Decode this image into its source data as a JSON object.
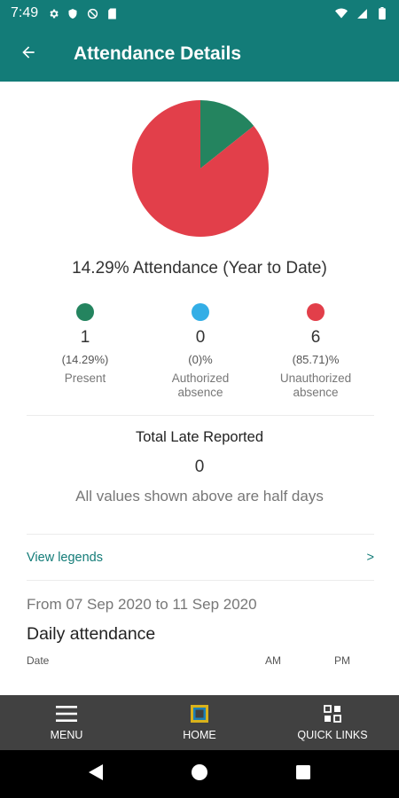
{
  "status_bar": {
    "time": "7:49",
    "left_icons": [
      "gear-icon",
      "shield-icon",
      "data-saver-icon",
      "sim-card-icon"
    ],
    "right_icons": [
      "wifi-icon",
      "signal-icon",
      "battery-icon"
    ]
  },
  "header": {
    "title": "Attendance Details",
    "back_icon": "arrow-left-icon"
  },
  "chart_data": {
    "type": "pie",
    "slices": [
      {
        "label": "Present",
        "value": 1,
        "percent": 14.29,
        "color": "#24845f"
      },
      {
        "label": "Authorized absence",
        "value": 0,
        "percent": 0,
        "color": "#33aee6"
      },
      {
        "label": "Unauthorized absence",
        "value": 6,
        "percent": 85.71,
        "color": "#e23f4a"
      }
    ]
  },
  "summary": {
    "text": "14.29% Attendance (Year to Date)"
  },
  "stats": [
    {
      "color": "#24845f",
      "count": "1",
      "pct": "(14.29%)",
      "label_line1": "Present",
      "label_line2": ""
    },
    {
      "color": "#33aee6",
      "count": "0",
      "pct": "(0)%",
      "label_line1": "Authorized",
      "label_line2": "absence"
    },
    {
      "color": "#e23f4a",
      "count": "6",
      "pct": "(85.71)%",
      "label_line1": "Unauthorized",
      "label_line2": "absence"
    }
  ],
  "late": {
    "title": "Total Late Reported",
    "value": "0",
    "note": "All values shown above are half days"
  },
  "legends": {
    "label": "View legends",
    "chevron": ">"
  },
  "daily": {
    "range": "From 07 Sep 2020 to 11 Sep 2020",
    "title": "Daily attendance",
    "columns": {
      "date": "Date",
      "am": "AM",
      "pm": "PM"
    }
  },
  "bottom_nav": {
    "items": [
      {
        "label": "MENU",
        "icon": "hamburger-menu-icon"
      },
      {
        "label": "HOME",
        "icon": "home-square-icon"
      },
      {
        "label": "QUICK LINKS",
        "icon": "grid-icon"
      }
    ]
  },
  "system_nav": {
    "icons": [
      "back-triangle-icon",
      "home-circle-icon",
      "recents-square-icon"
    ]
  }
}
